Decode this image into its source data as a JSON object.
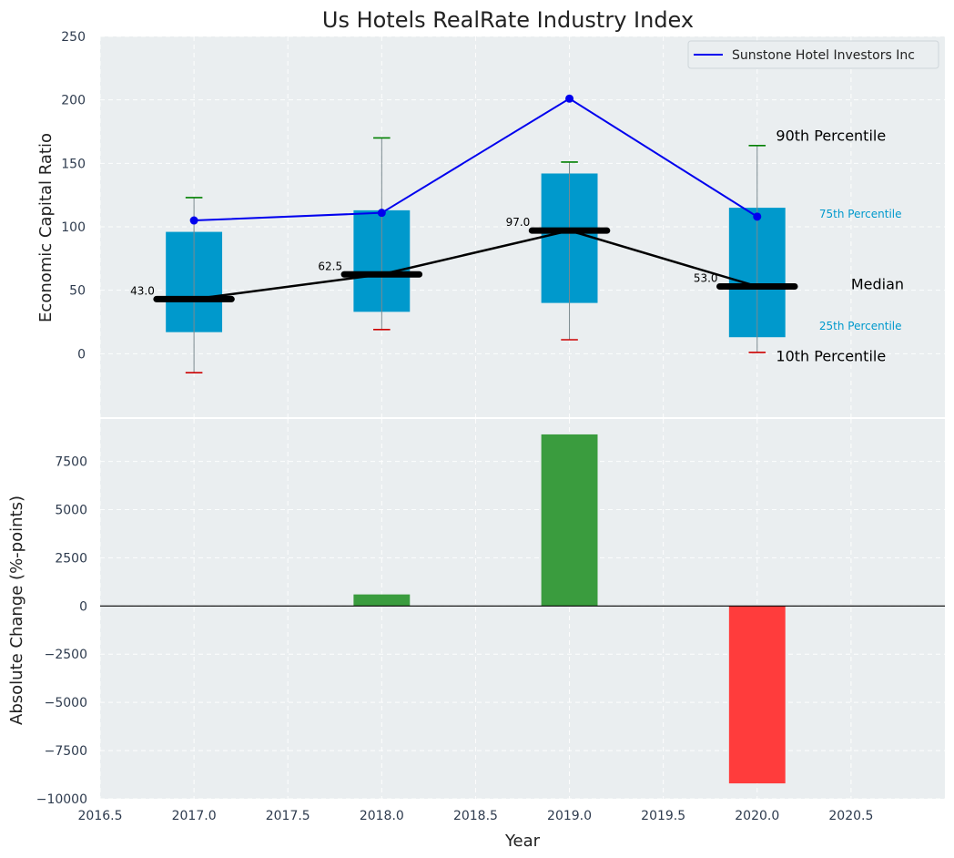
{
  "chart_data": [
    {
      "type": "box_line",
      "title": "Us Hotels RealRate Industry Index",
      "xlabel": "",
      "ylabel": "Economic Capital Ratio",
      "xlim": [
        2016.5,
        2021.0
      ],
      "ylim": [
        -50,
        250
      ],
      "yticks": [
        0,
        50,
        100,
        150,
        200,
        250
      ],
      "grid": true,
      "legend": {
        "position": "top-right",
        "label": "Sunstone Hotel Investors Inc"
      },
      "colors": {
        "box": "#0099cc",
        "company": "#0000ee",
        "median": "#000000",
        "p90": "#008000",
        "p10": "#cc0000",
        "background": "#eaeef0"
      },
      "categories": [
        2017.0,
        2018.0,
        2019.0,
        2020.0
      ],
      "p10": [
        -15,
        19,
        11,
        1
      ],
      "p25": [
        17,
        33,
        40,
        13
      ],
      "median": [
        43.0,
        62.5,
        97.0,
        53.0
      ],
      "median_labels": [
        "43.0",
        "62.5",
        "97.0",
        "53.0"
      ],
      "p75": [
        96,
        113,
        142,
        115
      ],
      "p90": [
        123,
        170,
        151,
        164
      ],
      "company": {
        "name": "Sunstone Hotel Investors Inc",
        "values": [
          105,
          111,
          201,
          108
        ]
      },
      "annotations": {
        "p90": "90th Percentile",
        "p75": "75th Percentile",
        "median": "Median",
        "p25": "25th Percentile",
        "p10": "10th Percentile"
      }
    },
    {
      "type": "bar",
      "xlabel": "Year",
      "ylabel": "Absolute Change (%-points)",
      "xlim": [
        2016.5,
        2021.0
      ],
      "xticks": [
        2016.5,
        2017.0,
        2017.5,
        2018.0,
        2018.5,
        2019.0,
        2019.5,
        2020.0,
        2020.5
      ],
      "xtick_labels": [
        "2016.5",
        "2017.0",
        "2017.5",
        "2018.0",
        "2018.5",
        "2019.0",
        "2019.5",
        "2020.0",
        "2020.5"
      ],
      "ylim": [
        -10000,
        9700
      ],
      "yticks": [
        -10000,
        -7500,
        -5000,
        -2500,
        0,
        2500,
        5000,
        7500
      ],
      "ytick_labels": [
        "−10000",
        "−7500",
        "−5000",
        "−2500",
        "0",
        "2500",
        "5000",
        "7500"
      ],
      "grid": true,
      "colors": {
        "positive": "#3a9c3e",
        "negative": "#ff3c3c"
      },
      "x": [
        2018.0,
        2019.0,
        2020.0
      ],
      "values": [
        600,
        8900,
        -9200
      ]
    }
  ]
}
